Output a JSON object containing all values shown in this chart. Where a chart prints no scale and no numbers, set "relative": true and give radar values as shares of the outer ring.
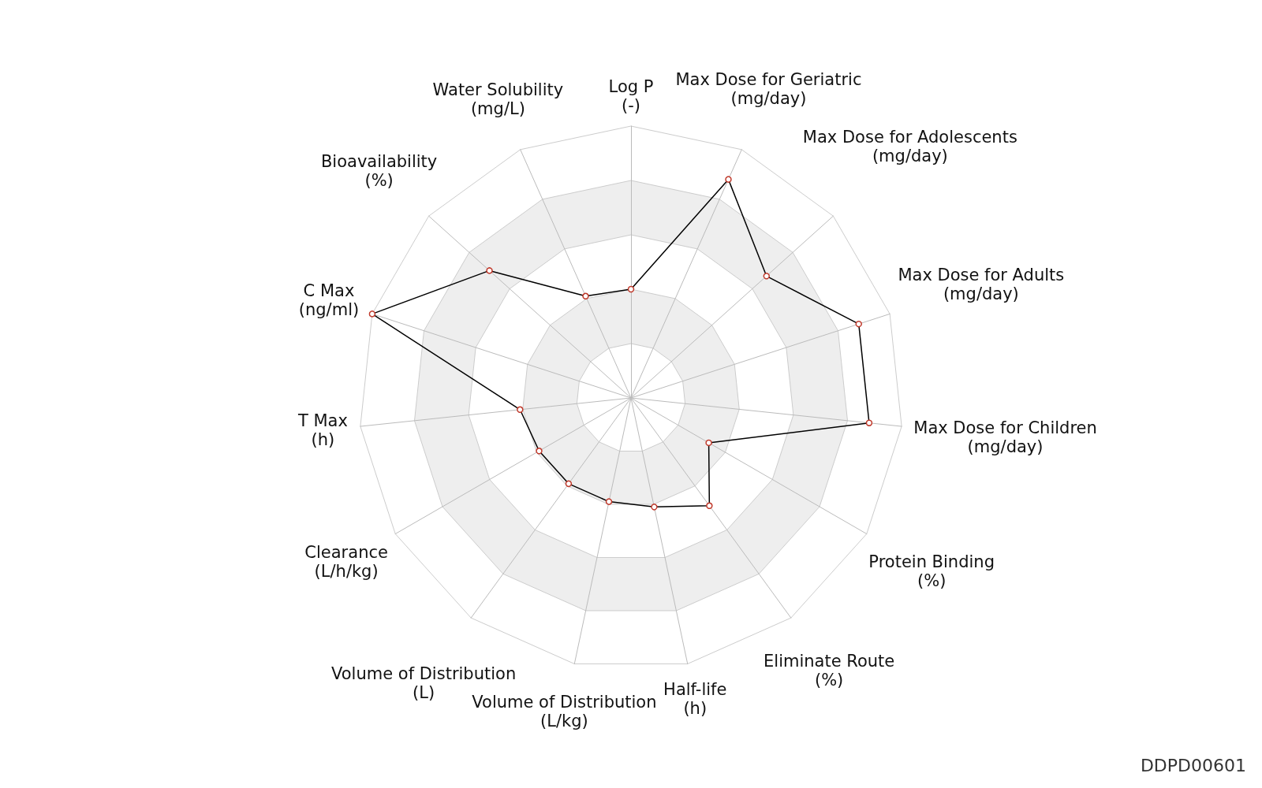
{
  "chart_data": {
    "type": "radar",
    "relative": true,
    "categories": [
      "Log P\n(-)",
      "Max Dose for Geriatric\n(mg/day)",
      "Max Dose for Adolescents\n(mg/day)",
      "Max Dose for Adults\n(mg/day)",
      "Max Dose for Children\n(mg/day)",
      "Protein Binding\n(%)",
      "Eliminate Route\n(%)",
      "Half-life\n(h)",
      "Volume of Distribution\n(L/kg)",
      "Volume of Distribution\n(L)",
      "Clearance\n(L/h/kg)",
      "T Max\n(h)",
      "C Max\n(ng/ml)",
      "Bioavailability\n(%)",
      "Water Solubility\n(mg/L)"
    ],
    "series": [
      {
        "color": "#000000",
        "values": [
          0.4,
          0.88,
          0.67,
          0.88,
          0.88,
          0.33,
          0.49,
          0.41,
          0.39,
          0.39,
          0.39,
          0.41,
          1.0,
          0.7,
          0.41
        ]
      }
    ],
    "marker": "circle",
    "annotations": [
      "DDPD00601"
    ]
  }
}
